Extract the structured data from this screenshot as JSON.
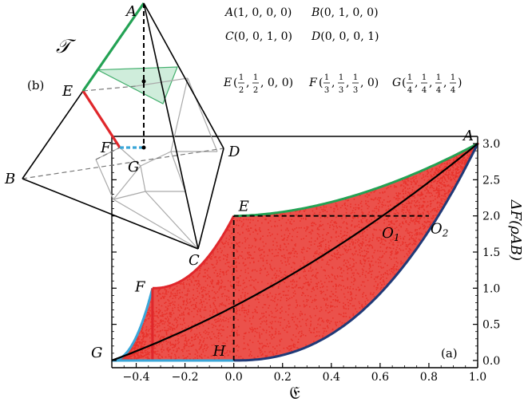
{
  "chart_data": {
    "type": "scatter",
    "panel_label": "(a)",
    "xlabel": "𝔈",
    "ylabel": "ΔF(ρAB)",
    "xlim": [
      -0.5,
      1.0
    ],
    "ylim": [
      -0.1,
      3.1
    ],
    "x_ticks": [
      "−0.4",
      "−0.2",
      "0.0",
      "0.2",
      "0.4",
      "0.6",
      "0.8",
      "1.0"
    ],
    "y_ticks": [
      "0.0",
      "0.5",
      "1.0",
      "1.5",
      "2.0",
      "2.5",
      "3.0"
    ],
    "points": [
      {
        "name": "A",
        "x": 1.0,
        "y": 3.0
      },
      {
        "name": "E",
        "x": 0.0,
        "y": 2.0
      },
      {
        "name": "F",
        "x": -0.333,
        "y": 1.0
      },
      {
        "name": "G",
        "x": -0.5,
        "y": 0.0
      },
      {
        "name": "H",
        "x": 0.0,
        "y": 0.0
      },
      {
        "name": "O1",
        "x": 0.64,
        "y": 1.9
      },
      {
        "name": "O2",
        "x": 0.8,
        "y": 2.0
      }
    ],
    "curves": {
      "upper_green": "E to A",
      "upper_red": "F to E",
      "upper_cyan": "G to F",
      "lower_blue": "G to H to A",
      "middle_black": "G to A"
    }
  },
  "inset": {
    "panel_label": "(b)",
    "title": "𝒯",
    "vertices": [
      "A",
      "B",
      "C",
      "D",
      "E",
      "F",
      "G"
    ],
    "coordinates": [
      {
        "name": "A",
        "text": "(1, 0, 0, 0)"
      },
      {
        "name": "B",
        "text": "(0, 1, 0, 0)"
      },
      {
        "name": "C",
        "text": "(0, 0, 1, 0)"
      },
      {
        "name": "D",
        "text": "(0, 0, 0, 1)"
      }
    ],
    "frac_coordinates": [
      {
        "name": "E",
        "nums": [
          "1",
          "1"
        ],
        "dens": [
          "2",
          "2"
        ],
        "tail": ", 0, 0)"
      },
      {
        "name": "F",
        "nums": [
          "1",
          "1",
          "1"
        ],
        "dens": [
          "3",
          "3",
          "3"
        ],
        "tail": ", 0)"
      },
      {
        "name": "G",
        "nums": [
          "1",
          "1",
          "1",
          "1"
        ],
        "dens": [
          "4",
          "4",
          "4",
          "4"
        ],
        "tail": ")"
      }
    ]
  },
  "colors": {
    "scatter": "#e8322b",
    "green": "#23a254",
    "red": "#e0272b",
    "cyan": "#3aa6d8",
    "blue": "#1f3a78",
    "shade": "#c7ead5"
  }
}
